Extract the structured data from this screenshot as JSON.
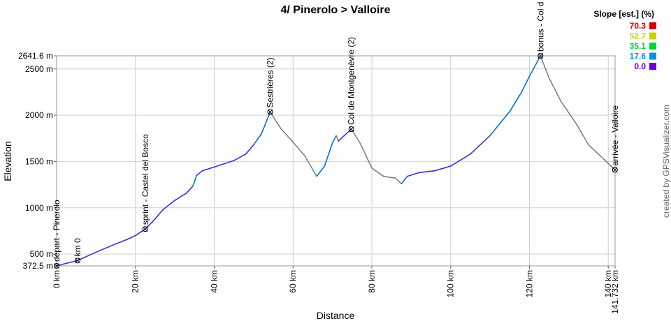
{
  "chart_data": {
    "type": "line",
    "title": "4/ Pinerolo > Valloire",
    "xlabel": "Distance",
    "ylabel": "Elevation",
    "credit": "created by GPSVisualizer.com",
    "xlim": [
      0,
      141.732
    ],
    "ylim": [
      372.5,
      2641.6
    ],
    "grid": true,
    "x_ticks": [
      {
        "v": 0,
        "label": "0 km"
      },
      {
        "v": 20,
        "label": "20 km"
      },
      {
        "v": 40,
        "label": "40 km"
      },
      {
        "v": 60,
        "label": "60 km"
      },
      {
        "v": 80,
        "label": "80 km"
      },
      {
        "v": 100,
        "label": "100 km"
      },
      {
        "v": 120,
        "label": "120 km"
      },
      {
        "v": 140,
        "label": "140 km"
      },
      {
        "v": 141.732,
        "label": "141.732 km"
      }
    ],
    "y_ticks": [
      {
        "v": 372.5,
        "label": "372.5 m"
      },
      {
        "v": 500,
        "label": "500 m"
      },
      {
        "v": 1000,
        "label": "1000 m"
      },
      {
        "v": 1500,
        "label": "1500 m"
      },
      {
        "v": 2000,
        "label": "2000 m"
      },
      {
        "v": 2500,
        "label": "2500 m"
      },
      {
        "v": 2641.6,
        "label": "2641.6 m"
      }
    ],
    "legend": {
      "title": "Slope [est.] (%)",
      "position": "top-right",
      "entries": [
        {
          "label": "70.3",
          "color": "#d40000"
        },
        {
          "label": "52.7",
          "color": "#c8d400"
        },
        {
          "label": "35.1",
          "color": "#00d432"
        },
        {
          "label": "17.6",
          "color": "#0096e0"
        },
        {
          "label": "0.0",
          "color": "#6a00d4"
        }
      ]
    },
    "waypoints": [
      {
        "x": 0,
        "y": 372.5,
        "label": "départ - Pinerolo"
      },
      {
        "x": 5.3,
        "y": 430,
        "label": "km 0"
      },
      {
        "x": 22.5,
        "y": 770,
        "label": "sprint - Castel del Bosco"
      },
      {
        "x": 54.2,
        "y": 2035,
        "label": "Sestrières (2)"
      },
      {
        "x": 74.8,
        "y": 1850,
        "label": "Col de Montgenèvre (2)"
      },
      {
        "x": 122.8,
        "y": 2641.6,
        "label": "bonus - Col d"
      },
      {
        "x": 141.7,
        "y": 1410,
        "label": "arrivée - Valloire"
      }
    ],
    "series": [
      {
        "x": [
          0,
          2,
          5.3,
          10,
          15,
          18,
          20,
          22.5,
          25,
          27,
          30,
          33,
          34.5,
          35,
          35.5,
          37,
          40,
          45,
          48,
          50,
          52,
          54.2,
          57,
          60,
          63,
          66,
          68,
          70,
          71,
          71.5,
          72,
          73,
          74.8,
          77,
          80,
          83,
          86,
          87.5,
          89,
          92,
          96,
          100,
          105,
          110,
          115,
          118,
          120,
          122.8,
          125,
          128,
          132,
          135,
          138,
          141.7
        ],
        "y": [
          372.5,
          395,
          430,
          520,
          610,
          660,
          700,
          770,
          880,
          980,
          1080,
          1160,
          1230,
          1280,
          1350,
          1400,
          1440,
          1510,
          1580,
          1680,
          1800,
          2035,
          1850,
          1710,
          1560,
          1340,
          1450,
          1700,
          1780,
          1720,
          1740,
          1780,
          1850,
          1700,
          1430,
          1340,
          1320,
          1260,
          1340,
          1380,
          1400,
          1450,
          1580,
          1780,
          2040,
          2250,
          2420,
          2641.6,
          2400,
          2150,
          1900,
          1680,
          1560,
          1410
        ]
      }
    ]
  }
}
